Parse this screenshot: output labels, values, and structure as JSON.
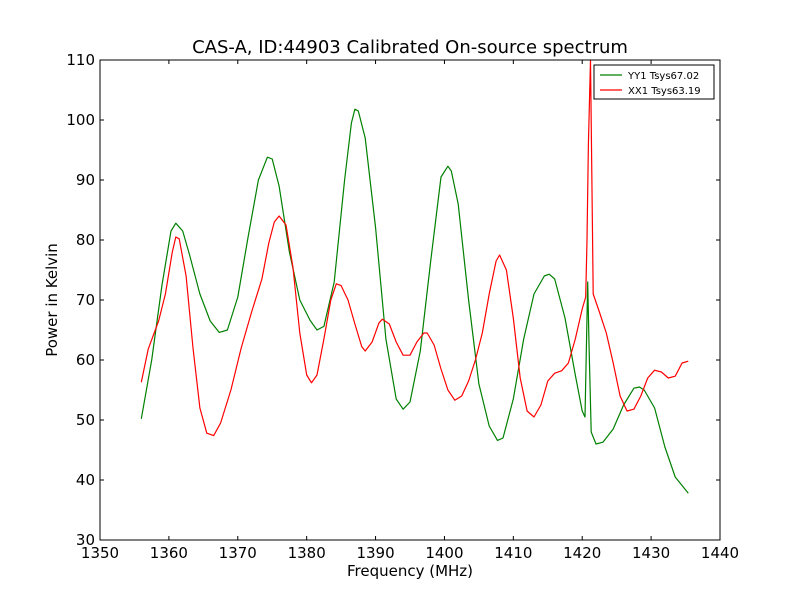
{
  "chart_data": {
    "type": "line",
    "title": "CAS-A, ID:44903 Calibrated On-source spectrum",
    "xlabel": "Frequency (MHz)",
    "ylabel": "Power in Kelvin",
    "xlim": [
      1350,
      1440
    ],
    "ylim": [
      30,
      110
    ],
    "xticks": [
      1350,
      1360,
      1370,
      1380,
      1390,
      1400,
      1410,
      1420,
      1430,
      1440
    ],
    "yticks": [
      30,
      40,
      50,
      60,
      70,
      80,
      90,
      100,
      110
    ],
    "grid": false,
    "legend_position": "top-right",
    "series": [
      {
        "name": "YY1 Tsys67.02",
        "color": "#008000",
        "x": [
          1356.0,
          1357.5,
          1359.0,
          1360.3,
          1361.0,
          1362.0,
          1363.0,
          1364.5,
          1366.0,
          1367.3,
          1368.5,
          1370.0,
          1371.5,
          1373.0,
          1374.3,
          1375.0,
          1376.0,
          1377.5,
          1379.0,
          1380.5,
          1381.5,
          1382.5,
          1384.0,
          1385.5,
          1386.5,
          1387.0,
          1387.5,
          1388.5,
          1390.0,
          1391.5,
          1393.0,
          1394.0,
          1395.0,
          1396.5,
          1398.0,
          1399.5,
          1400.5,
          1401.0,
          1402.0,
          1403.5,
          1405.0,
          1406.5,
          1407.7,
          1408.5,
          1410.0,
          1411.5,
          1413.0,
          1414.5,
          1415.2,
          1416.0,
          1417.5,
          1419.0,
          1420.0,
          1420.4,
          1420.8,
          1421.0,
          1421.3,
          1422.0,
          1423.0,
          1424.5,
          1426.0,
          1427.5,
          1428.3,
          1429.0,
          1430.5,
          1432.0,
          1433.5,
          1435.4
        ],
        "values": [
          50.2,
          60.0,
          72.5,
          81.5,
          82.8,
          81.5,
          77.5,
          71.0,
          66.5,
          64.6,
          65.0,
          70.5,
          80.5,
          90.0,
          93.8,
          93.5,
          89.0,
          78.0,
          70.0,
          66.6,
          65.0,
          65.6,
          73.0,
          90.0,
          99.5,
          101.8,
          101.5,
          97.0,
          82.0,
          63.5,
          53.5,
          51.8,
          53.0,
          61.5,
          76.5,
          90.5,
          92.3,
          91.5,
          86.0,
          70.0,
          56.0,
          49.0,
          46.6,
          47.0,
          53.5,
          63.5,
          71.0,
          74.0,
          74.3,
          73.5,
          67.0,
          57.5,
          51.5,
          50.5,
          73.0,
          62.0,
          48.0,
          46.0,
          46.3,
          48.5,
          52.5,
          55.3,
          55.5,
          55.0,
          52.0,
          45.5,
          40.5,
          37.8
        ]
      },
      {
        "name": "XX1 Tsys63.19",
        "color": "#ff0000",
        "x": [
          1356.0,
          1357.0,
          1358.5,
          1359.5,
          1360.5,
          1361.0,
          1361.5,
          1362.5,
          1363.5,
          1364.5,
          1365.5,
          1366.5,
          1367.5,
          1369.0,
          1370.5,
          1372.0,
          1373.5,
          1374.5,
          1375.3,
          1376.0,
          1377.0,
          1378.0,
          1379.0,
          1380.0,
          1380.7,
          1381.5,
          1382.5,
          1383.5,
          1384.3,
          1385.0,
          1386.0,
          1387.0,
          1388.0,
          1388.5,
          1389.5,
          1390.5,
          1391.0,
          1392.0,
          1393.0,
          1394.0,
          1395.0,
          1396.0,
          1397.0,
          1397.5,
          1398.5,
          1399.5,
          1400.5,
          1401.5,
          1402.5,
          1403.5,
          1404.5,
          1405.5,
          1406.5,
          1407.5,
          1408.0,
          1409.0,
          1410.0,
          1411.0,
          1412.0,
          1413.0,
          1414.0,
          1415.0,
          1416.0,
          1417.0,
          1418.0,
          1419.0,
          1420.0,
          1420.5,
          1420.7,
          1420.9,
          1421.2,
          1421.6,
          1422.5,
          1423.5,
          1424.5,
          1425.5,
          1426.5,
          1427.5,
          1428.5,
          1429.5,
          1430.5,
          1431.5,
          1432.5,
          1433.5,
          1434.5,
          1435.4
        ],
        "values": [
          56.3,
          61.8,
          66.5,
          71.0,
          78.0,
          80.5,
          80.2,
          74.0,
          62.0,
          52.0,
          47.8,
          47.4,
          49.5,
          55.0,
          62.0,
          68.0,
          73.5,
          79.5,
          83.0,
          84.0,
          82.5,
          75.5,
          64.5,
          57.5,
          56.2,
          57.5,
          63.5,
          70.0,
          72.7,
          72.4,
          70.0,
          66.0,
          62.2,
          61.5,
          63.0,
          66.2,
          66.8,
          66.0,
          63.0,
          60.8,
          60.8,
          63.0,
          64.5,
          64.5,
          62.5,
          58.5,
          55.0,
          53.3,
          54.0,
          56.5,
          60.0,
          64.5,
          71.0,
          76.5,
          77.5,
          75.0,
          67.0,
          57.0,
          51.5,
          50.5,
          52.5,
          56.5,
          57.8,
          58.2,
          59.5,
          63.5,
          68.5,
          70.5,
          80.0,
          96.0,
          110.0,
          71.0,
          68.0,
          64.5,
          59.5,
          54.0,
          51.5,
          51.8,
          54.0,
          57.0,
          58.3,
          58.0,
          57.0,
          57.3,
          59.5,
          59.8
        ]
      }
    ]
  }
}
